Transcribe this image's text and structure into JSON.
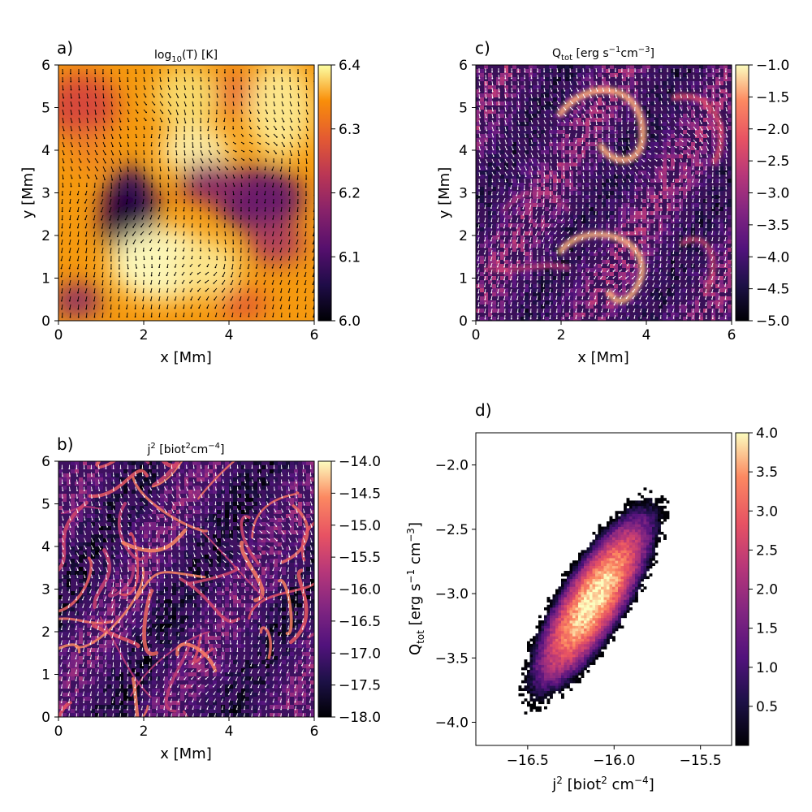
{
  "chart_data": [
    {
      "panel": "a)",
      "type": "heatmap",
      "title": "log10(T) [K]",
      "title_main": "log",
      "title_sub": "10",
      "title_tail": "(T) [K]",
      "xlabel": "x [Mm]",
      "ylabel": "y [Mm]",
      "xlim": [
        0,
        6
      ],
      "ylim": [
        0,
        6
      ],
      "xticks": [
        "0",
        "2",
        "4",
        "6"
      ],
      "yticks": [
        "0",
        "1",
        "2",
        "3",
        "4",
        "5",
        "6"
      ],
      "colormap": "inferno",
      "clim": [
        6.0,
        6.4
      ],
      "colorbar_ticks": [
        "6.0",
        "6.1",
        "6.2",
        "6.3",
        "6.4"
      ],
      "overlay": "velocity vectors (black)",
      "arrow_color": "#000000"
    },
    {
      "panel": "b)",
      "type": "heatmap",
      "title": "j2 [biot2cm-4]",
      "title_main": "j",
      "title_sup": "2",
      "title_mid": " [biot",
      "title_sup2": "2",
      "title_mid2": "cm",
      "title_sup3": "−4",
      "title_tail": "]",
      "xlabel": "x [Mm]",
      "ylabel": "",
      "xlim": [
        0,
        6
      ],
      "ylim": [
        0,
        6
      ],
      "xticks": [
        "0",
        "2",
        "4",
        "6"
      ],
      "yticks": [
        "0",
        "1",
        "2",
        "3",
        "4",
        "5",
        "6"
      ],
      "colormap": "magma",
      "clim": [
        -18.0,
        -14.0
      ],
      "colorbar_ticks": [
        "−18.0",
        "−17.5",
        "−17.0",
        "−16.5",
        "−16.0",
        "−15.5",
        "−15.0",
        "−14.5",
        "−14.0"
      ],
      "overlay": "magnetic field lines (white)",
      "arrow_color": "#ffffff"
    },
    {
      "panel": "c)",
      "type": "heatmap",
      "title": "Qtot [erg s-1cm-3]",
      "title_main": "Q",
      "title_sub": "tot",
      "title_mid": " [erg s",
      "title_sup": "−1",
      "title_mid2": "cm",
      "title_sup2": "−3",
      "title_tail": "]",
      "xlabel": "x [Mm]",
      "ylabel": "y [Mm]",
      "xlim": [
        0,
        6
      ],
      "ylim": [
        0,
        6
      ],
      "xticks": [
        "0",
        "2",
        "4",
        "6"
      ],
      "yticks": [
        "0",
        "1",
        "2",
        "3",
        "4",
        "5",
        "6"
      ],
      "colormap": "magma",
      "clim": [
        -5.0,
        -1.0
      ],
      "colorbar_ticks": [
        "−5.0",
        "−4.5",
        "−4.0",
        "−3.5",
        "−3.0",
        "−2.5",
        "−2.0",
        "−1.5",
        "−1.0"
      ],
      "overlay": "velocity vectors (white)",
      "arrow_color": "#ffffff"
    },
    {
      "panel": "d)",
      "type": "heatmap",
      "subtype": "2D histogram",
      "xlabel_main": "j",
      "xlabel_sup": "2",
      "xlabel_mid": " [biot",
      "xlabel_sup2": "2",
      "xlabel_mid2": " cm",
      "xlabel_sup3": "−4",
      "xlabel_tail": "]",
      "ylabel_main": "Q",
      "ylabel_sub": "tot",
      "ylabel_mid": " [erg s",
      "ylabel_sup": "−1",
      "ylabel_mid2": " cm",
      "ylabel_sup2": "−3",
      "ylabel_tail": "]",
      "xlim": [
        -16.8,
        -15.32
      ],
      "ylim": [
        -4.18,
        -1.75
      ],
      "xticks": [
        {
          "value": -16.5,
          "label": "−16.5"
        },
        {
          "value": -16.0,
          "label": "−16.0"
        },
        {
          "value": -15.5,
          "label": "−15.5"
        }
      ],
      "yticks": [
        {
          "value": -4.0,
          "label": "−4.0"
        },
        {
          "value": -3.5,
          "label": "−3.5"
        },
        {
          "value": -3.0,
          "label": "−3.0"
        },
        {
          "value": -2.5,
          "label": "−2.5"
        },
        {
          "value": -2.0,
          "label": "−2.0"
        }
      ],
      "distribution": {
        "center_x": -16.12,
        "center_y": -3.05,
        "slope": 2.3,
        "peak_log_count": 4.0
      },
      "colormap": "magma",
      "clim": [
        0.0,
        4.0
      ],
      "colorbar_ticks": [
        {
          "value": 0.5,
          "label": "0.5"
        },
        {
          "value": 1.0,
          "label": "1.0"
        },
        {
          "value": 1.5,
          "label": "1.5"
        },
        {
          "value": 2.0,
          "label": "2.0"
        },
        {
          "value": 2.5,
          "label": "2.5"
        },
        {
          "value": 3.0,
          "label": "3.0"
        },
        {
          "value": 3.5,
          "label": "3.5"
        },
        {
          "value": 4.0,
          "label": "4.0"
        }
      ]
    }
  ]
}
